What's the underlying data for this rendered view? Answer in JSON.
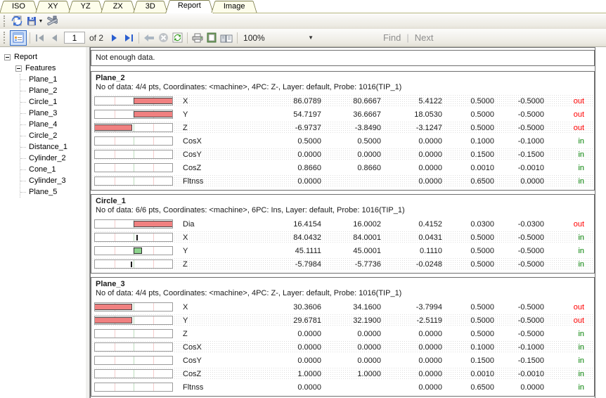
{
  "tabs": [
    {
      "label": "ISO",
      "active": false
    },
    {
      "label": "XY",
      "active": false
    },
    {
      "label": "YZ",
      "active": false
    },
    {
      "label": "ZX",
      "active": false
    },
    {
      "label": "3D",
      "active": false
    },
    {
      "label": "Report",
      "active": true
    },
    {
      "label": "Image",
      "active": false
    }
  ],
  "toolbar_main": {
    "icons": [
      "refresh-report-icon",
      "save-icon",
      "tools-icon"
    ]
  },
  "report_toolbar": {
    "page_current": "1",
    "page_of_label": "of 2",
    "zoom_value": "100%",
    "find_label": "Find",
    "next_label": "Next",
    "separator": "|"
  },
  "tree": {
    "root_label": "Report",
    "group_label": "Features",
    "items": [
      "Plane_1",
      "Plane_2",
      "Circle_1",
      "Plane_3",
      "Plane_4",
      "Circle_2",
      "Distance_1",
      "Cylinder_2",
      "Cone_1",
      "Cylinder_3",
      "Plane_5"
    ]
  },
  "report": {
    "notice": "Not enough data.",
    "sections": [
      {
        "title": "Plane_2",
        "info": "No of data: 4/4 pts, Coordinates: <machine>, 4PC: Z-, Layer: default, Probe: 1016(TIP_1)",
        "stripe_start": 0,
        "rows": [
          {
            "name": "X",
            "actual": "86.0789",
            "nominal": "80.6667",
            "deviation": "5.4122",
            "utol": "0.5000",
            "ltol": "-0.5000",
            "status": "out",
            "bar": {
              "kind": "over-right"
            }
          },
          {
            "name": "Y",
            "actual": "54.7197",
            "nominal": "36.6667",
            "deviation": "18.0530",
            "utol": "0.5000",
            "ltol": "-0.5000",
            "status": "out",
            "bar": {
              "kind": "over-right"
            }
          },
          {
            "name": "Z",
            "actual": "-6.9737",
            "nominal": "-3.8490",
            "deviation": "-3.1247",
            "utol": "0.5000",
            "ltol": "-0.5000",
            "status": "out",
            "bar": {
              "kind": "over-left"
            }
          },
          {
            "name": "CosX",
            "actual": "0.5000",
            "nominal": "0.5000",
            "deviation": "0.0000",
            "utol": "0.1000",
            "ltol": "-0.1000",
            "status": "in",
            "bar": {
              "kind": "none"
            }
          },
          {
            "name": "CosY",
            "actual": "0.0000",
            "nominal": "0.0000",
            "deviation": "0.0000",
            "utol": "0.1500",
            "ltol": "-0.1500",
            "status": "in",
            "bar": {
              "kind": "none"
            }
          },
          {
            "name": "CosZ",
            "actual": "0.8660",
            "nominal": "0.8660",
            "deviation": "0.0000",
            "utol": "0.0010",
            "ltol": "-0.0010",
            "status": "in",
            "bar": {
              "kind": "none"
            }
          },
          {
            "name": "Fltnss",
            "actual": "0.0000",
            "nominal": "",
            "deviation": "0.0000",
            "utol": "0.6500",
            "ltol": "0.0000",
            "status": "in",
            "bar": {
              "kind": "none"
            }
          }
        ]
      },
      {
        "title": "Circle_1",
        "info": "No of data: 6/6 pts, Coordinates: <machine>, 6PC: Ins, Layer: default, Probe: 1016(TIP_1)",
        "stripe_start": 1,
        "rows": [
          {
            "name": "Dia",
            "actual": "16.4154",
            "nominal": "16.0002",
            "deviation": "0.4152",
            "utol": "0.0300",
            "ltol": "-0.0300",
            "status": "out",
            "bar": {
              "kind": "over-right"
            }
          },
          {
            "name": "X",
            "actual": "84.0432",
            "nominal": "84.0001",
            "deviation": "0.0431",
            "utol": "0.5000",
            "ltol": "-0.5000",
            "status": "in",
            "bar": {
              "kind": "tick",
              "frac": 0.09
            }
          },
          {
            "name": "Y",
            "actual": "45.1111",
            "nominal": "45.0001",
            "deviation": "0.1110",
            "utol": "0.5000",
            "ltol": "-0.5000",
            "status": "in",
            "bar": {
              "kind": "green",
              "frac": 0.22
            }
          },
          {
            "name": "Z",
            "actual": "-5.7984",
            "nominal": "-5.7736",
            "deviation": "-0.0248",
            "utol": "0.5000",
            "ltol": "-0.5000",
            "status": "in",
            "bar": {
              "kind": "tick",
              "frac": -0.05
            }
          }
        ]
      },
      {
        "title": "Plane_3",
        "info": "No of data: 4/4 pts, Coordinates: <machine>, 4PC: Z-, Layer: default, Probe: 1016(TIP_1)",
        "stripe_start": 1,
        "rows": [
          {
            "name": "X",
            "actual": "30.3606",
            "nominal": "34.1600",
            "deviation": "-3.7994",
            "utol": "0.5000",
            "ltol": "-0.5000",
            "status": "out",
            "bar": {
              "kind": "over-left"
            }
          },
          {
            "name": "Y",
            "actual": "29.6781",
            "nominal": "32.1900",
            "deviation": "-2.5119",
            "utol": "0.5000",
            "ltol": "-0.5000",
            "status": "out",
            "bar": {
              "kind": "over-left"
            }
          },
          {
            "name": "Z",
            "actual": "0.0000",
            "nominal": "0.0000",
            "deviation": "0.0000",
            "utol": "0.5000",
            "ltol": "-0.5000",
            "status": "in",
            "bar": {
              "kind": "none"
            }
          },
          {
            "name": "CosX",
            "actual": "0.0000",
            "nominal": "0.0000",
            "deviation": "0.0000",
            "utol": "0.1000",
            "ltol": "-0.1000",
            "status": "in",
            "bar": {
              "kind": "none"
            }
          },
          {
            "name": "CosY",
            "actual": "0.0000",
            "nominal": "0.0000",
            "deviation": "0.0000",
            "utol": "0.1500",
            "ltol": "-0.1500",
            "status": "in",
            "bar": {
              "kind": "none"
            }
          },
          {
            "name": "CosZ",
            "actual": "1.0000",
            "nominal": "1.0000",
            "deviation": "0.0000",
            "utol": "0.0010",
            "ltol": "-0.0010",
            "status": "in",
            "bar": {
              "kind": "none"
            }
          },
          {
            "name": "Fltnss",
            "actual": "0.0000",
            "nominal": "",
            "deviation": "0.0000",
            "utol": "0.6500",
            "ltol": "0.0000",
            "status": "in",
            "bar": {
              "kind": "none"
            }
          }
        ]
      }
    ]
  },
  "colors": {
    "status_out": "#ff0000",
    "status_in": "#008000",
    "bar_fill_out": "#f08080",
    "bar_fill_in": "#8ed48e",
    "gridline_pink": "#f5cccc",
    "gridline_green": "#bcdcbc",
    "tab_border_olive": "#7d7d4b",
    "toolbar_active_border": "#316ac5"
  }
}
